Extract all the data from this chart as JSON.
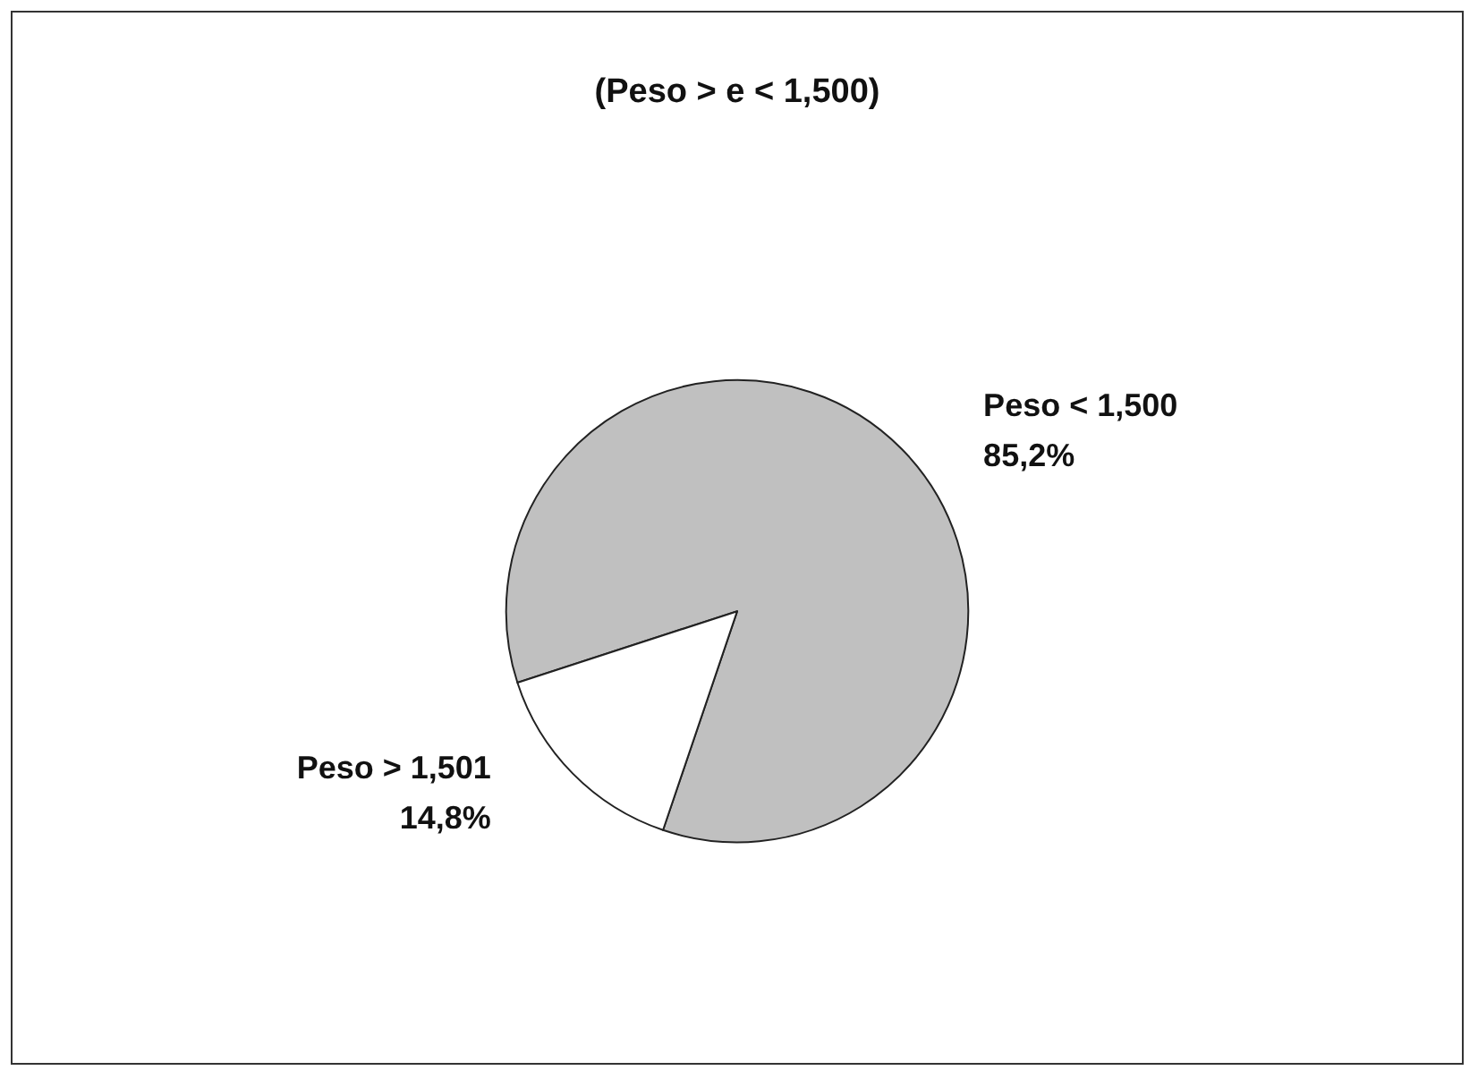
{
  "chart_data": {
    "type": "pie",
    "title": "(Peso > e < 1,500)",
    "categories": [
      "Peso < 1,500",
      "Peso > 1,501"
    ],
    "values": [
      85.2,
      14.8
    ],
    "value_labels": [
      "85,2%",
      "14,8%"
    ],
    "colors": [
      "#c0c0c0",
      "#ffffff"
    ],
    "legend": false
  }
}
